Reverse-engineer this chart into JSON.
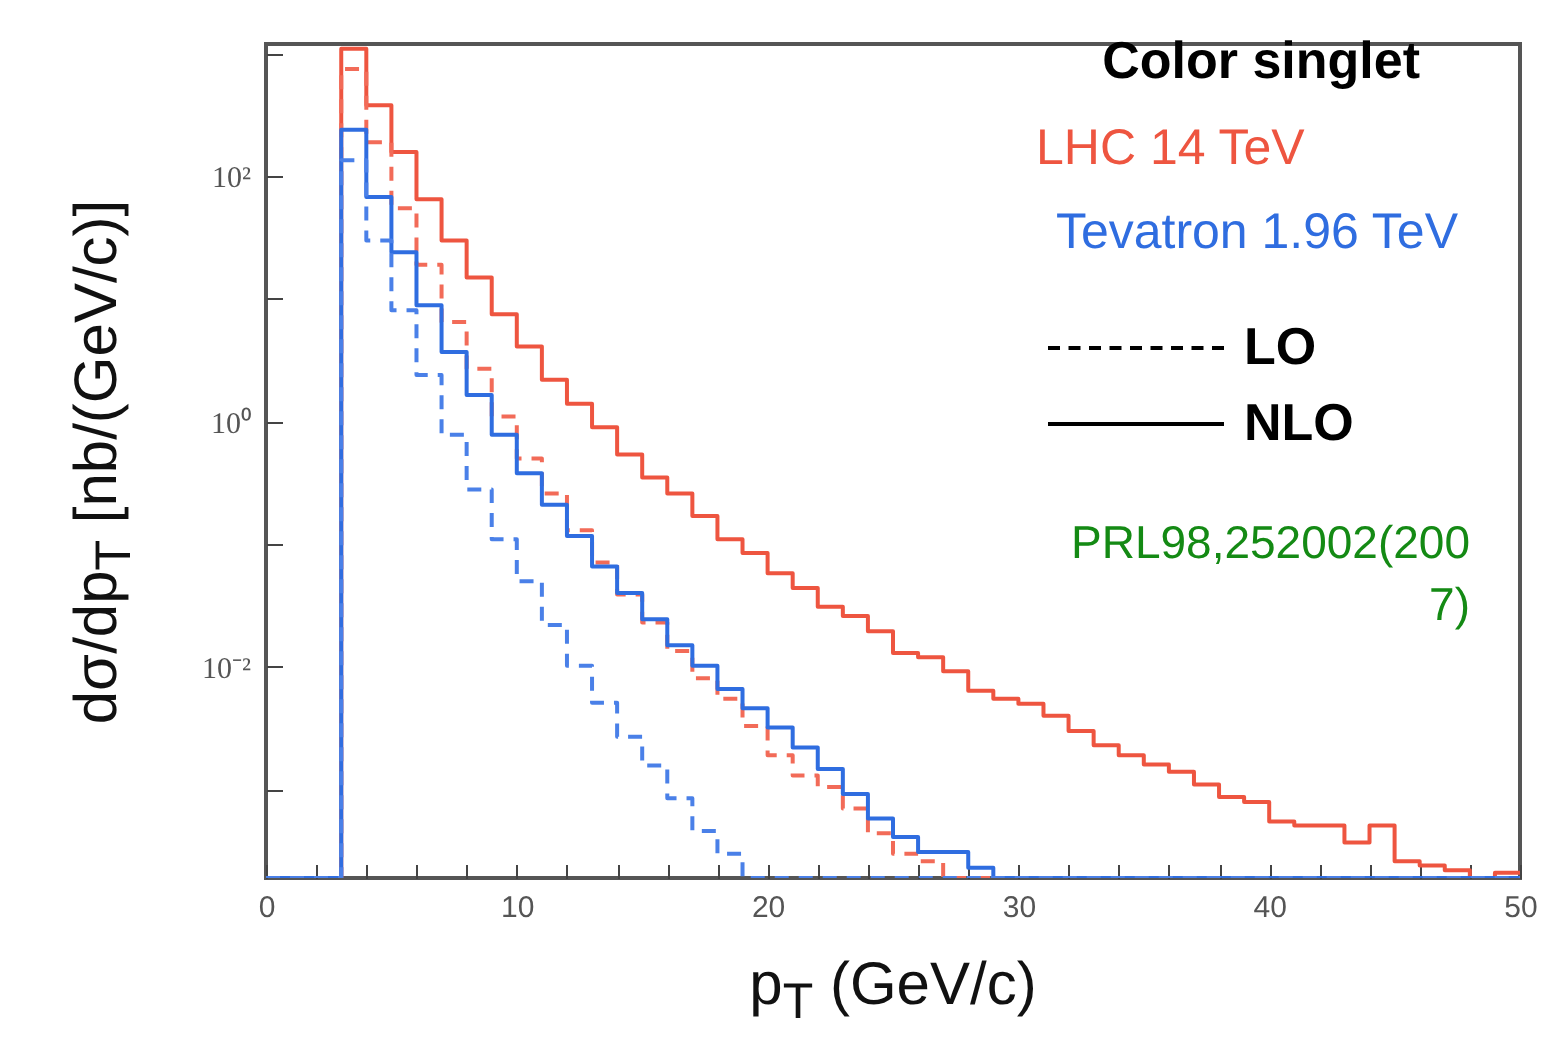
{
  "chart_data": {
    "type": "histogram",
    "xlabel": "p$_{T}$ (GeV/c)",
    "ylabel": "dσ/dp$_{T}$ [nb/(GeV/c)]",
    "legend_title": "Color singlet",
    "log": "y",
    "xlim": [
      0,
      50
    ],
    "xticks": [
      0,
      {
        "value": 2,
        "label": null
      },
      {
        "value": 4,
        "label": null
      },
      {
        "value": 6,
        "label": null
      },
      {
        "value": 8,
        "label": null
      },
      10,
      {
        "value": 12,
        "label": null
      },
      {
        "value": 14,
        "label": null
      },
      {
        "value": 16,
        "label": null
      },
      {
        "value": 18,
        "label": null
      },
      20,
      {
        "value": 22,
        "label": null
      },
      {
        "value": 24,
        "label": null
      },
      {
        "value": 26,
        "label": null
      },
      {
        "value": 28,
        "label": null
      },
      30,
      {
        "value": 32,
        "label": null
      },
      {
        "value": 34,
        "label": null
      },
      {
        "value": 36,
        "label": null
      },
      {
        "value": 38,
        "label": null
      },
      40,
      {
        "value": 42,
        "label": null
      },
      {
        "value": 44,
        "label": null
      },
      {
        "value": 46,
        "label": null
      },
      {
        "value": 48,
        "label": null
      },
      50
    ],
    "ylim": [
      0.00019,
      1200
    ],
    "yticks": [
      {
        "value": 1000,
        "label": null
      },
      {
        "value": 100,
        "label": "10²"
      },
      {
        "value": 10,
        "label": null
      },
      {
        "value": 1,
        "label": "10⁰"
      },
      {
        "value": 0.1,
        "label": null
      },
      {
        "value": 0.01,
        "label": "10⁻²"
      },
      {
        "value": 0.001,
        "label": null
      }
    ],
    "bins": [
      0,
      1,
      2,
      3,
      4,
      5,
      6,
      7,
      8,
      9,
      10,
      11,
      12,
      13,
      14,
      15,
      16,
      17,
      18,
      19,
      20,
      21,
      22,
      23,
      24,
      25,
      26,
      27,
      28,
      29,
      30,
      31,
      32,
      33,
      34,
      35,
      36,
      37,
      38,
      39,
      40,
      41,
      42,
      43,
      44,
      45,
      46,
      47,
      48,
      49,
      50
    ],
    "series": [
      {
        "color": "#ee5540",
        "line_style": "solid",
        "values": [
          null,
          null,
          null,
          1100,
          380,
          158,
          65,
          30,
          15,
          7.5,
          4.1,
          2.2,
          1.4,
          0.9,
          0.54,
          0.35,
          0.26,
          0.17,
          0.11,
          0.085,
          0.058,
          0.044,
          0.031,
          0.026,
          0.0195,
          0.013,
          0.012,
          0.0092,
          0.0064,
          0.0055,
          0.005,
          0.004,
          0.003,
          0.0023,
          0.0019,
          0.0016,
          0.0014,
          0.0011,
          0.00087,
          0.00079,
          0.00055,
          0.00051,
          0.00051,
          0.00037,
          0.00051,
          0.00026,
          0.00024,
          0.00022,
          null,
          0.00021
        ]
      },
      {
        "color": "#f26b58",
        "line_style": "dashed",
        "values": [
          null,
          null,
          null,
          750,
          190,
          55,
          19,
          6.5,
          2.7,
          1.1,
          0.5,
          0.26,
          0.13,
          0.071,
          0.039,
          0.023,
          0.0135,
          0.0081,
          0.0055,
          0.0033,
          0.0019,
          0.0013,
          0.00105,
          0.0007,
          0.00044,
          0.0003,
          0.00026,
          null,
          null,
          null,
          null,
          null,
          null,
          null,
          null,
          null,
          null,
          null,
          null,
          null,
          null,
          null,
          null,
          null,
          null,
          null,
          null,
          null,
          null,
          null
        ]
      },
      {
        "color": "#2f6de0",
        "line_style": "solid",
        "values": [
          null,
          null,
          null,
          240,
          68,
          24,
          8.9,
          3.7,
          1.65,
          0.78,
          0.38,
          0.21,
          0.117,
          0.066,
          0.04,
          0.0245,
          0.015,
          0.0102,
          0.0066,
          0.0046,
          0.0032,
          0.0022,
          0.00147,
          0.00092,
          0.00058,
          0.00041,
          0.00031,
          0.00031,
          0.00023,
          null,
          null,
          null,
          null,
          null,
          null,
          null,
          null,
          null,
          null,
          null,
          null,
          null,
          null,
          null,
          null,
          null,
          null,
          null,
          null,
          null
        ]
      },
      {
        "color": "#4a80e8",
        "line_style": "dashed",
        "values": [
          null,
          null,
          null,
          135,
          30,
          8.1,
          2.4,
          0.78,
          0.28,
          0.11,
          0.05,
          0.022,
          0.0102,
          0.0051,
          0.0027,
          0.00157,
          0.00085,
          0.00046,
          0.0003,
          null,
          null,
          null,
          null,
          null,
          null,
          null,
          null,
          null,
          null,
          null,
          null,
          null,
          null,
          null,
          null,
          null,
          null,
          null,
          null,
          null,
          null,
          null,
          null,
          null,
          null,
          null,
          null,
          null,
          null,
          null
        ]
      }
    ],
    "annotations": [
      "LHC 14 TeV",
      "Tevatron 1.96 TeV",
      "LO",
      "NLO",
      "PRL98,252002(2007)"
    ]
  }
}
